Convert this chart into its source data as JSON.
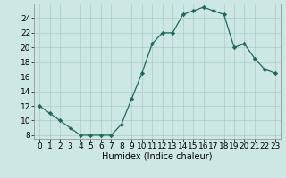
{
  "x": [
    0,
    1,
    2,
    3,
    4,
    5,
    6,
    7,
    8,
    9,
    10,
    11,
    12,
    13,
    14,
    15,
    16,
    17,
    18,
    19,
    20,
    21,
    22,
    23
  ],
  "y": [
    12,
    11,
    10,
    9,
    8,
    8,
    8,
    8,
    9.5,
    13,
    16.5,
    20.5,
    22,
    22,
    24.5,
    25,
    25.5,
    25,
    24.5,
    20,
    20.5,
    18.5,
    17,
    16.5
  ],
  "line_color": "#1a6b5a",
  "marker": "D",
  "markersize": 2.2,
  "bg_color": "#cde8e4",
  "grid_color": "#aaccc7",
  "xlabel": "Humidex (Indice chaleur)",
  "xlim": [
    -0.5,
    23.5
  ],
  "ylim": [
    7.5,
    26
  ],
  "yticks": [
    8,
    10,
    12,
    14,
    16,
    18,
    20,
    22,
    24
  ],
  "xticks": [
    0,
    1,
    2,
    3,
    4,
    5,
    6,
    7,
    8,
    9,
    10,
    11,
    12,
    13,
    14,
    15,
    16,
    17,
    18,
    19,
    20,
    21,
    22,
    23
  ],
  "xlabel_fontsize": 7,
  "tick_fontsize": 6.5
}
